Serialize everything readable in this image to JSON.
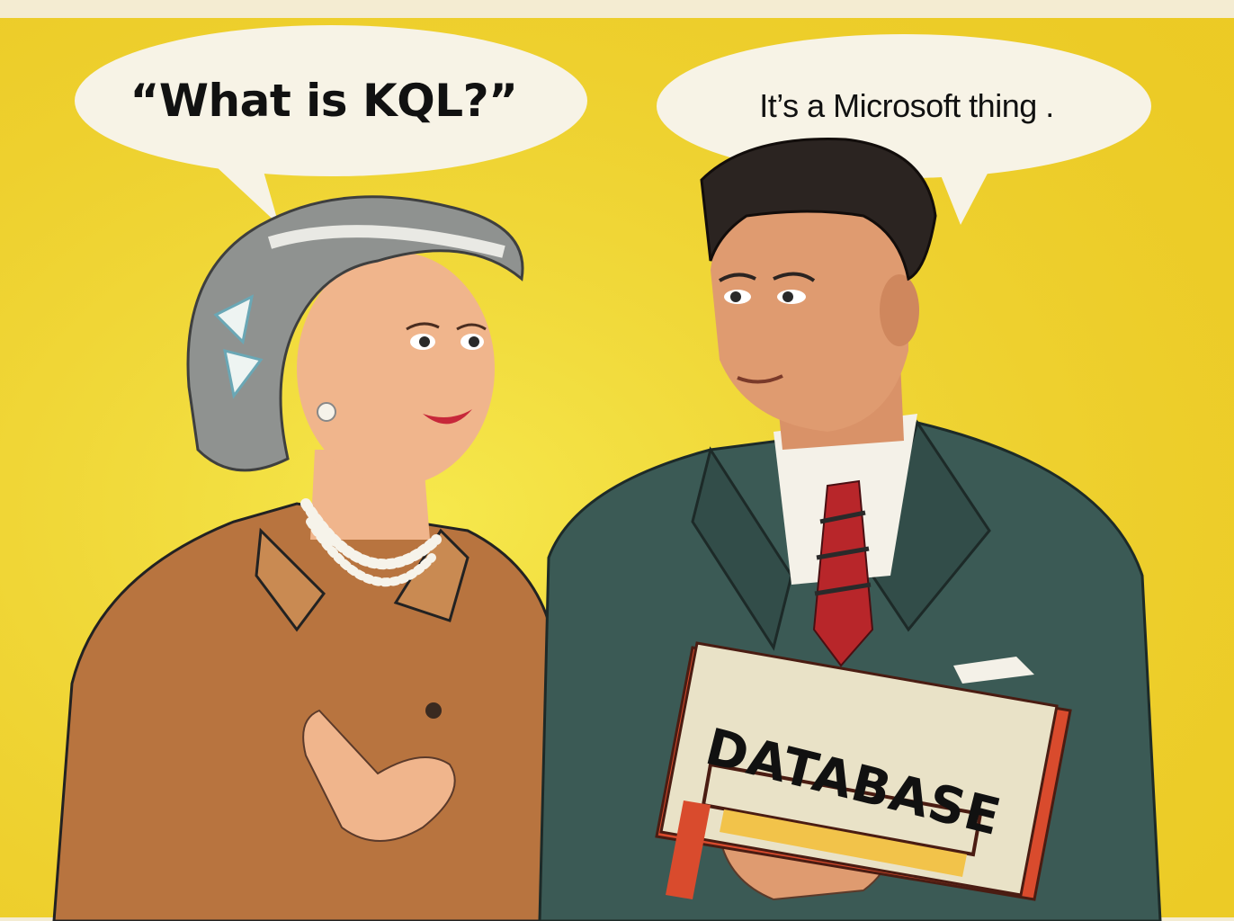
{
  "comic": {
    "speech_left": "“What is KQL?”",
    "speech_right": "It’s a Microsoft thing .",
    "book_title": "DATABASE"
  },
  "colors": {
    "background_yellow": "#f2d92a",
    "border_cream": "#f4ecd2",
    "woman_dress": "#b8743f",
    "man_suit": "#3b5a55",
    "tie_red": "#b8262a",
    "book_cover": "#e9e2c7"
  }
}
